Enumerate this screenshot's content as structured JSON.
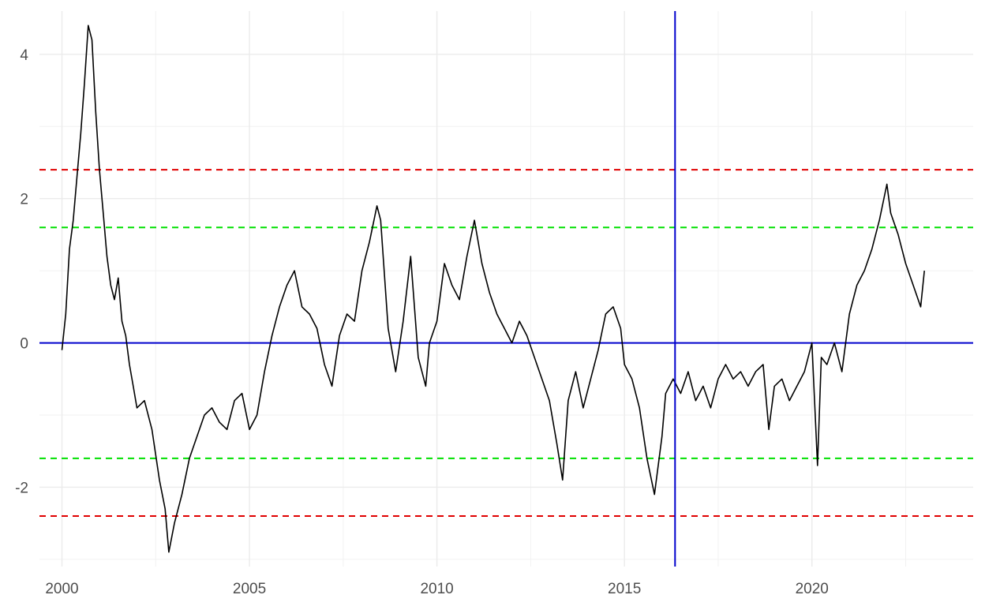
{
  "chart_data": {
    "type": "line",
    "title": "",
    "xlabel": "",
    "ylabel": "",
    "xlim": [
      1999.4,
      2024.3
    ],
    "ylim": [
      -3.1,
      4.6
    ],
    "x_ticks": [
      2000,
      2005,
      2010,
      2015,
      2020
    ],
    "x_tick_labels": [
      "2000",
      "2005",
      "2010",
      "2015",
      "2020"
    ],
    "y_ticks": [
      -2,
      0,
      2,
      4
    ],
    "y_tick_labels": [
      "-2",
      "0",
      "2",
      "4"
    ],
    "grid": true,
    "legend": "none",
    "series": [
      {
        "color": "#000000",
        "x": [
          2000.0,
          2000.1,
          2000.2,
          2000.3,
          2000.4,
          2000.5,
          2000.6,
          2000.7,
          2000.8,
          2000.9,
          2001.0,
          2001.1,
          2001.2,
          2001.3,
          2001.4,
          2001.5,
          2001.6,
          2001.7,
          2001.8,
          2001.9,
          2002.0,
          2002.2,
          2002.4,
          2002.6,
          2002.75,
          2002.85,
          2003.0,
          2003.2,
          2003.4,
          2003.6,
          2003.8,
          2004.0,
          2004.2,
          2004.4,
          2004.6,
          2004.8,
          2005.0,
          2005.2,
          2005.4,
          2005.6,
          2005.8,
          2006.0,
          2006.2,
          2006.4,
          2006.6,
          2006.8,
          2007.0,
          2007.2,
          2007.4,
          2007.6,
          2007.8,
          2008.0,
          2008.2,
          2008.4,
          2008.5,
          2008.7,
          2008.9,
          2009.1,
          2009.3,
          2009.5,
          2009.7,
          2009.8,
          2010.0,
          2010.2,
          2010.4,
          2010.6,
          2010.8,
          2011.0,
          2011.2,
          2011.4,
          2011.6,
          2011.8,
          2012.0,
          2012.2,
          2012.4,
          2012.6,
          2012.8,
          2013.0,
          2013.2,
          2013.35,
          2013.5,
          2013.7,
          2013.9,
          2014.1,
          2014.3,
          2014.5,
          2014.7,
          2014.9,
          2015.0,
          2015.2,
          2015.4,
          2015.6,
          2015.8,
          2016.0,
          2016.1,
          2016.3,
          2016.5,
          2016.7,
          2016.9,
          2017.1,
          2017.3,
          2017.5,
          2017.7,
          2017.9,
          2018.1,
          2018.3,
          2018.5,
          2018.7,
          2018.85,
          2019.0,
          2019.2,
          2019.4,
          2019.6,
          2019.8,
          2020.0,
          2020.15,
          2020.25,
          2020.4,
          2020.6,
          2020.8,
          2021.0,
          2021.2,
          2021.4,
          2021.6,
          2021.8,
          2022.0,
          2022.1,
          2022.3,
          2022.5,
          2022.7,
          2022.9,
          2023.0
        ],
        "y": [
          -0.1,
          0.4,
          1.3,
          1.7,
          2.3,
          2.9,
          3.6,
          4.4,
          4.2,
          3.2,
          2.4,
          1.8,
          1.2,
          0.8,
          0.6,
          0.9,
          0.3,
          0.1,
          -0.3,
          -0.6,
          -0.9,
          -0.8,
          -1.2,
          -1.9,
          -2.3,
          -2.9,
          -2.5,
          -2.1,
          -1.6,
          -1.3,
          -1.0,
          -0.9,
          -1.1,
          -1.2,
          -0.8,
          -0.7,
          -1.2,
          -1.0,
          -0.4,
          0.1,
          0.5,
          0.8,
          1.0,
          0.5,
          0.4,
          0.2,
          -0.3,
          -0.6,
          0.1,
          0.4,
          0.3,
          1.0,
          1.4,
          1.9,
          1.7,
          0.2,
          -0.4,
          0.3,
          1.2,
          -0.2,
          -0.6,
          0.0,
          0.3,
          1.1,
          0.8,
          0.6,
          1.2,
          1.7,
          1.1,
          0.7,
          0.4,
          0.2,
          0.0,
          0.3,
          0.1,
          -0.2,
          -0.5,
          -0.8,
          -1.4,
          -1.9,
          -0.8,
          -0.4,
          -0.9,
          -0.5,
          -0.1,
          0.4,
          0.5,
          0.2,
          -0.3,
          -0.5,
          -0.9,
          -1.6,
          -2.1,
          -1.3,
          -0.7,
          -0.5,
          -0.7,
          -0.4,
          -0.8,
          -0.6,
          -0.9,
          -0.5,
          -0.3,
          -0.5,
          -0.4,
          -0.6,
          -0.4,
          -0.3,
          -1.2,
          -0.6,
          -0.5,
          -0.8,
          -0.6,
          -0.4,
          0.0,
          -1.7,
          -0.2,
          -0.3,
          0.0,
          -0.4,
          0.4,
          0.8,
          1.0,
          1.3,
          1.7,
          2.2,
          1.8,
          1.5,
          1.1,
          0.8,
          0.5,
          1.0
        ]
      }
    ],
    "horizontal_lines": [
      {
        "y": 2.4,
        "color": "#e00000",
        "style": "dashed"
      },
      {
        "y": 1.6,
        "color": "#00e000",
        "style": "dashed"
      },
      {
        "y": 0,
        "color": "#0000cc",
        "style": "solid"
      },
      {
        "y": -1.6,
        "color": "#00e000",
        "style": "dashed"
      },
      {
        "y": -2.4,
        "color": "#e00000",
        "style": "dashed"
      }
    ],
    "vertical_lines": [
      {
        "x": 2016.35,
        "color": "#0000cc",
        "style": "solid"
      }
    ]
  }
}
